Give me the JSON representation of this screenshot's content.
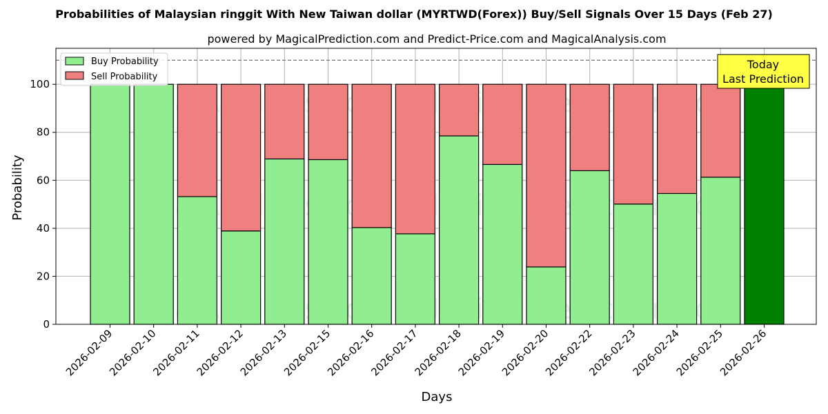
{
  "title": "Probabilities of Malaysian ringgit With New Taiwan dollar (MYRTWD(Forex)) Buy/Sell Signals Over 15 Days (Feb 27)",
  "subtitle": "powered by MagicalPrediction.com and Predict-Price.com and MagicalAnalysis.com",
  "watermarks": [
    "MagicalAnalysis.com",
    "MagicalPrediction.com"
  ],
  "today_box": {
    "line1": "Today",
    "line2": "Last Prediction"
  },
  "colors": {
    "buy": "#90ee90",
    "sell": "#f08080",
    "today": "#008000",
    "today_box": "#ffff44"
  },
  "chart_data": {
    "type": "bar",
    "stacked": true,
    "xlabel": "Days",
    "ylabel": "Probability",
    "ylim": [
      0,
      115
    ],
    "yticks": [
      0,
      20,
      40,
      60,
      80,
      100
    ],
    "reference_line": 110,
    "grid": true,
    "legend_position": "top-left",
    "categories": [
      "2026-02-09",
      "2026-02-10",
      "2026-02-11",
      "2026-02-12",
      "2026-02-13",
      "2026-02-15",
      "2026-02-16",
      "2026-02-17",
      "2026-02-18",
      "2026-02-19",
      "2026-02-20",
      "2026-02-22",
      "2026-02-23",
      "2026-02-24",
      "2026-02-25",
      "2026-02-26"
    ],
    "series": [
      {
        "name": "Buy Probability",
        "values": [
          100,
          100,
          53.2,
          38.9,
          68.9,
          68.6,
          40.3,
          37.7,
          78.5,
          66.6,
          23.9,
          64.0,
          50.1,
          54.5,
          61.3,
          100
        ]
      },
      {
        "name": "Sell Probability",
        "values": [
          0,
          0,
          46.8,
          61.1,
          31.1,
          31.4,
          59.7,
          62.3,
          21.5,
          33.4,
          76.1,
          36.0,
          49.9,
          45.5,
          38.7,
          0
        ]
      }
    ]
  }
}
